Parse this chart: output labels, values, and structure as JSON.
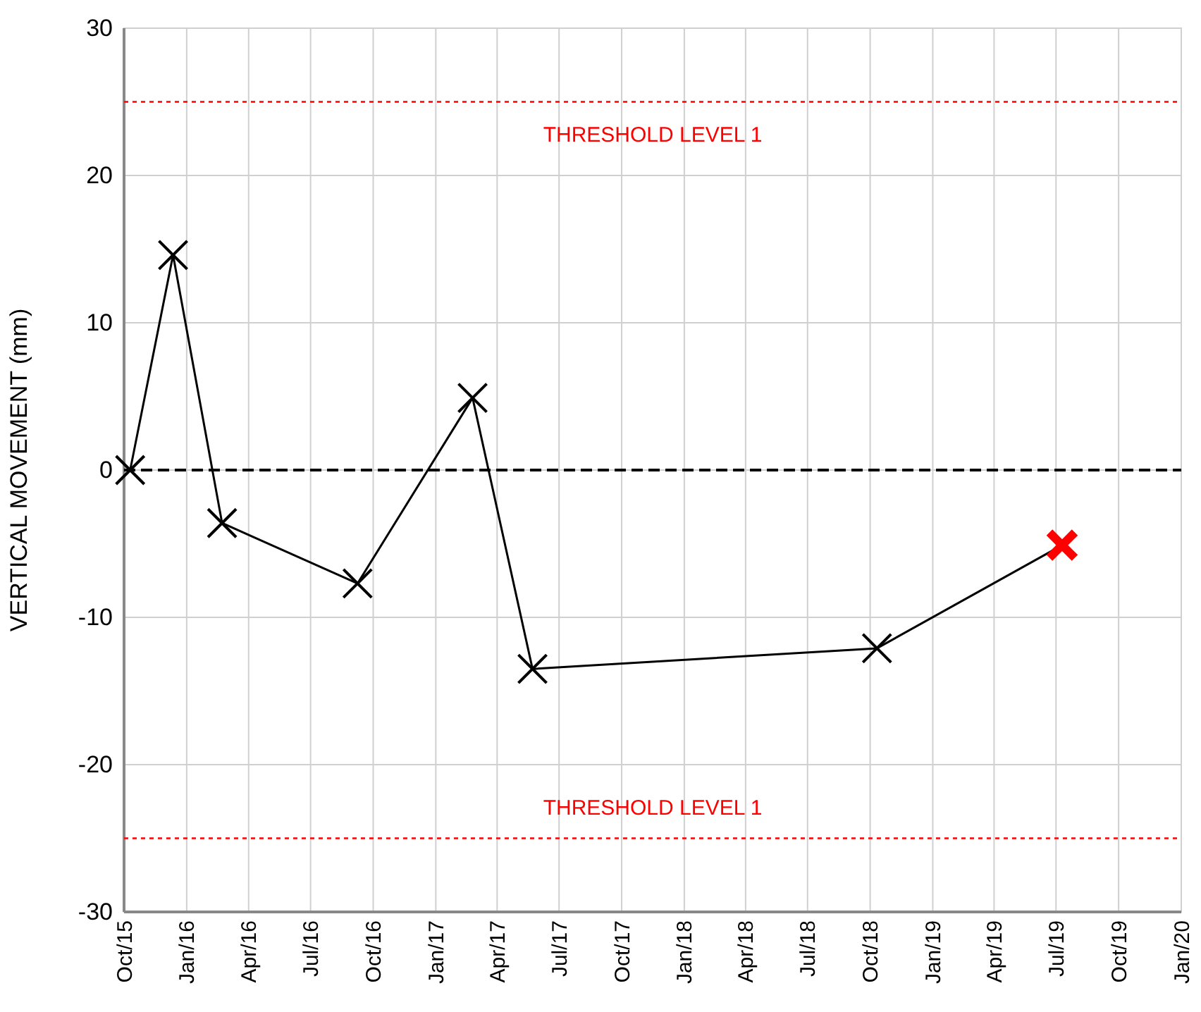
{
  "chart_data": {
    "type": "line",
    "ylabel": "VERTICAL MOVEMENT (mm)",
    "x": [
      "2015-10-10",
      "2015-12-12",
      "2016-02-22",
      "2016-09-08",
      "2017-02-24",
      "2017-05-23",
      "2018-10-11",
      "2019-07-10"
    ],
    "series": [
      {
        "color": "#000000",
        "colors": [
          "#000000",
          "#000000",
          "#000000",
          "#000000",
          "#000000",
          "#000000",
          "#000000",
          "#ff0000"
        ],
        "values": [
          0,
          14.6,
          -3.6,
          -7.7,
          4.9,
          -13.5,
          -12.1,
          -5.1
        ]
      }
    ],
    "marker": "cross",
    "line_style": "solid",
    "grid": true,
    "ylim": [
      -30,
      30
    ],
    "yticks": [
      -30,
      -20,
      -10,
      0,
      10,
      20,
      30
    ],
    "xlim": [
      "2015-10-01",
      "2020-01-01"
    ],
    "xticks": [
      {
        "value": "2015-10-01",
        "label": "Oct/15"
      },
      {
        "value": "2016-01-01",
        "label": "Jan/16"
      },
      {
        "value": "2016-04-01",
        "label": "Apr/16"
      },
      {
        "value": "2016-07-01",
        "label": "Jul/16"
      },
      {
        "value": "2016-10-01",
        "label": "Oct/16"
      },
      {
        "value": "2017-01-01",
        "label": "Jan/17"
      },
      {
        "value": "2017-04-01",
        "label": "Apr/17"
      },
      {
        "value": "2017-07-01",
        "label": "Jul/17"
      },
      {
        "value": "2017-10-01",
        "label": "Oct/17"
      },
      {
        "value": "2018-01-01",
        "label": "Jan/18"
      },
      {
        "value": "2018-04-01",
        "label": "Apr/18"
      },
      {
        "value": "2018-07-01",
        "label": "Jul/18"
      },
      {
        "value": "2018-10-01",
        "label": "Oct/18"
      },
      {
        "value": "2019-01-01",
        "label": "Jan/19"
      },
      {
        "value": "2019-04-01",
        "label": "Apr/19"
      },
      {
        "value": "2019-07-01",
        "label": "Jul/19"
      },
      {
        "value": "2019-10-01",
        "label": "Oct/19"
      },
      {
        "value": "2020-01-01",
        "label": "Jan/20"
      }
    ],
    "ref_lines": [
      {
        "axis": "y",
        "value": 25,
        "label": "THRESHOLD LEVEL 1",
        "color": "#ff0000",
        "line_style": "dotted"
      },
      {
        "axis": "y",
        "value": -25,
        "label": "THRESHOLD LEVEL 1",
        "color": "#ff0000",
        "line_style": "dotted"
      },
      {
        "axis": "y",
        "value": 0,
        "color": "#000000",
        "line_style": "dashed"
      }
    ]
  }
}
